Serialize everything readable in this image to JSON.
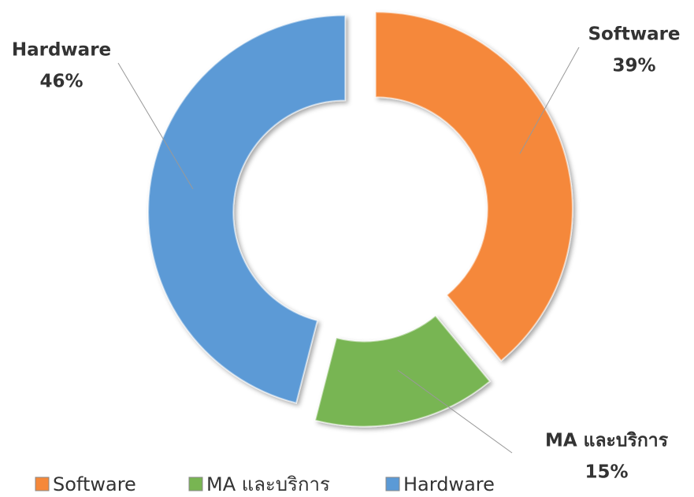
{
  "chart_data": {
    "type": "donut",
    "categories": [
      "Software",
      "MA และบริการ",
      "Hardware"
    ],
    "values": [
      39,
      15,
      46
    ],
    "value_labels": [
      "39%",
      "15%",
      "46%"
    ],
    "colors": [
      "#f5883a",
      "#78b552",
      "#5b9ad6"
    ],
    "legend": "bottom"
  }
}
